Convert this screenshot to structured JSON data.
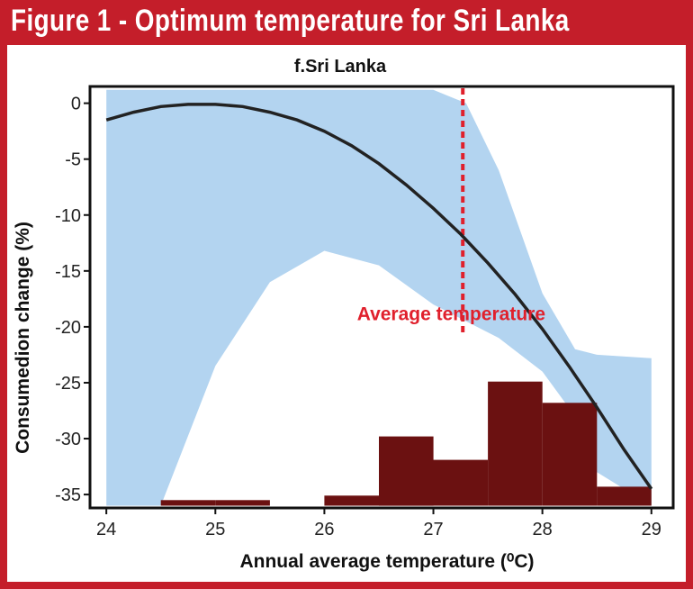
{
  "figure": {
    "banner_title": "Figure 1 - Optimum temperature for Sri Lanka",
    "colors": {
      "banner": "#c41e2a",
      "band": "#b3d4f0",
      "curve": "#222222",
      "histogram": "#6b1111",
      "reference_line": "#e0202c"
    }
  },
  "chart_data": {
    "type": "line",
    "title": "f.Sri Lanka",
    "xlabel": "Annual average temperature (⁰C)",
    "ylabel": "Consumedion change (%)",
    "xlim": [
      23.85,
      29.2
    ],
    "ylim": [
      -36.2,
      1.5
    ],
    "x_ticks": [
      24,
      25,
      26,
      27,
      28,
      29
    ],
    "y_ticks": [
      0,
      -5,
      -10,
      -15,
      -20,
      -25,
      -30,
      -35
    ],
    "grid": false,
    "curve": {
      "x": [
        24.0,
        24.25,
        24.5,
        24.75,
        25.0,
        25.25,
        25.5,
        25.75,
        26.0,
        26.25,
        26.5,
        26.75,
        27.0,
        27.25,
        27.5,
        27.75,
        28.0,
        28.25,
        28.5,
        28.75,
        29.0
      ],
      "y": [
        -1.5,
        -0.8,
        -0.3,
        -0.1,
        -0.1,
        -0.3,
        -0.8,
        -1.5,
        -2.5,
        -3.8,
        -5.4,
        -7.3,
        -9.4,
        -11.7,
        -14.3,
        -17.1,
        -20.2,
        -23.6,
        -27.2,
        -31.0,
        -34.5
      ]
    },
    "confidence_band": {
      "x": [
        24.0,
        24.5,
        25.0,
        25.5,
        26.0,
        26.5,
        27.0,
        27.3,
        27.6,
        28.0,
        28.3,
        28.5,
        29.0
      ],
      "upper": [
        1.2,
        1.2,
        1.2,
        1.2,
        1.2,
        1.2,
        1.2,
        0.0,
        -6.0,
        -17.0,
        -22.0,
        -22.5,
        -22.8
      ],
      "lower": [
        -36.0,
        -36.0,
        -23.5,
        -16.0,
        -13.2,
        -14.5,
        -18.0,
        -19.5,
        -21.0,
        -24.0,
        -28.0,
        -33.0,
        -36.0
      ]
    },
    "histogram": {
      "bins": [
        {
          "x0": 24.5,
          "x1": 25.0,
          "value": -35.5
        },
        {
          "x0": 25.0,
          "x1": 25.5,
          "value": -35.5
        },
        {
          "x0": 26.0,
          "x1": 26.5,
          "value": -35.1
        },
        {
          "x0": 26.5,
          "x1": 27.0,
          "value": -29.8
        },
        {
          "x0": 27.0,
          "x1": 27.5,
          "value": -31.9
        },
        {
          "x0": 27.5,
          "x1": 28.0,
          "value": -24.9
        },
        {
          "x0": 28.0,
          "x1": 28.5,
          "value": -26.8
        },
        {
          "x0": 28.5,
          "x1": 29.0,
          "value": -34.3
        }
      ],
      "baseline": -36.0
    },
    "reference_line": {
      "x": 27.27,
      "label": "Average temperature",
      "label_x": 26.3,
      "label_y": -19.4
    }
  }
}
